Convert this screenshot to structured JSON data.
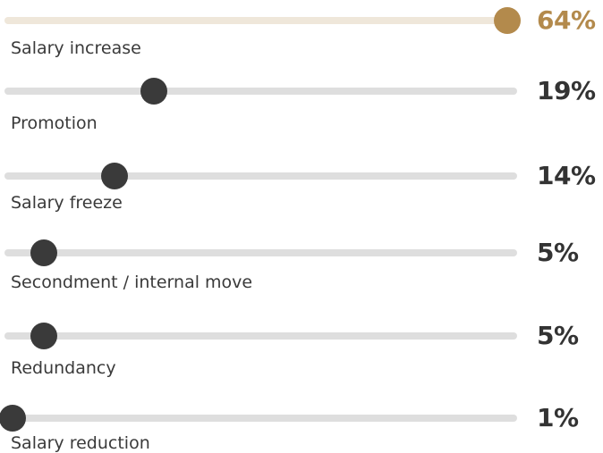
{
  "chart_data": {
    "type": "bar",
    "categories": [
      "Salary increase",
      "Promotion",
      "Salary freeze",
      "Secondment / internal move",
      "Redundancy",
      "Salary reduction"
    ],
    "values": [
      64,
      19,
      14,
      5,
      5,
      1
    ],
    "value_labels": [
      "64%",
      "19%",
      "14%",
      "5%",
      "5%",
      "1%"
    ],
    "highlighted_category": "Salary increase",
    "colors": {
      "highlight_track": "#efe7da",
      "highlight_knob": "#b38a4c",
      "track": "#dedede",
      "knob": "#3a3a3a",
      "value_text": "#333333",
      "highlight_text": "#b38a4c"
    }
  }
}
